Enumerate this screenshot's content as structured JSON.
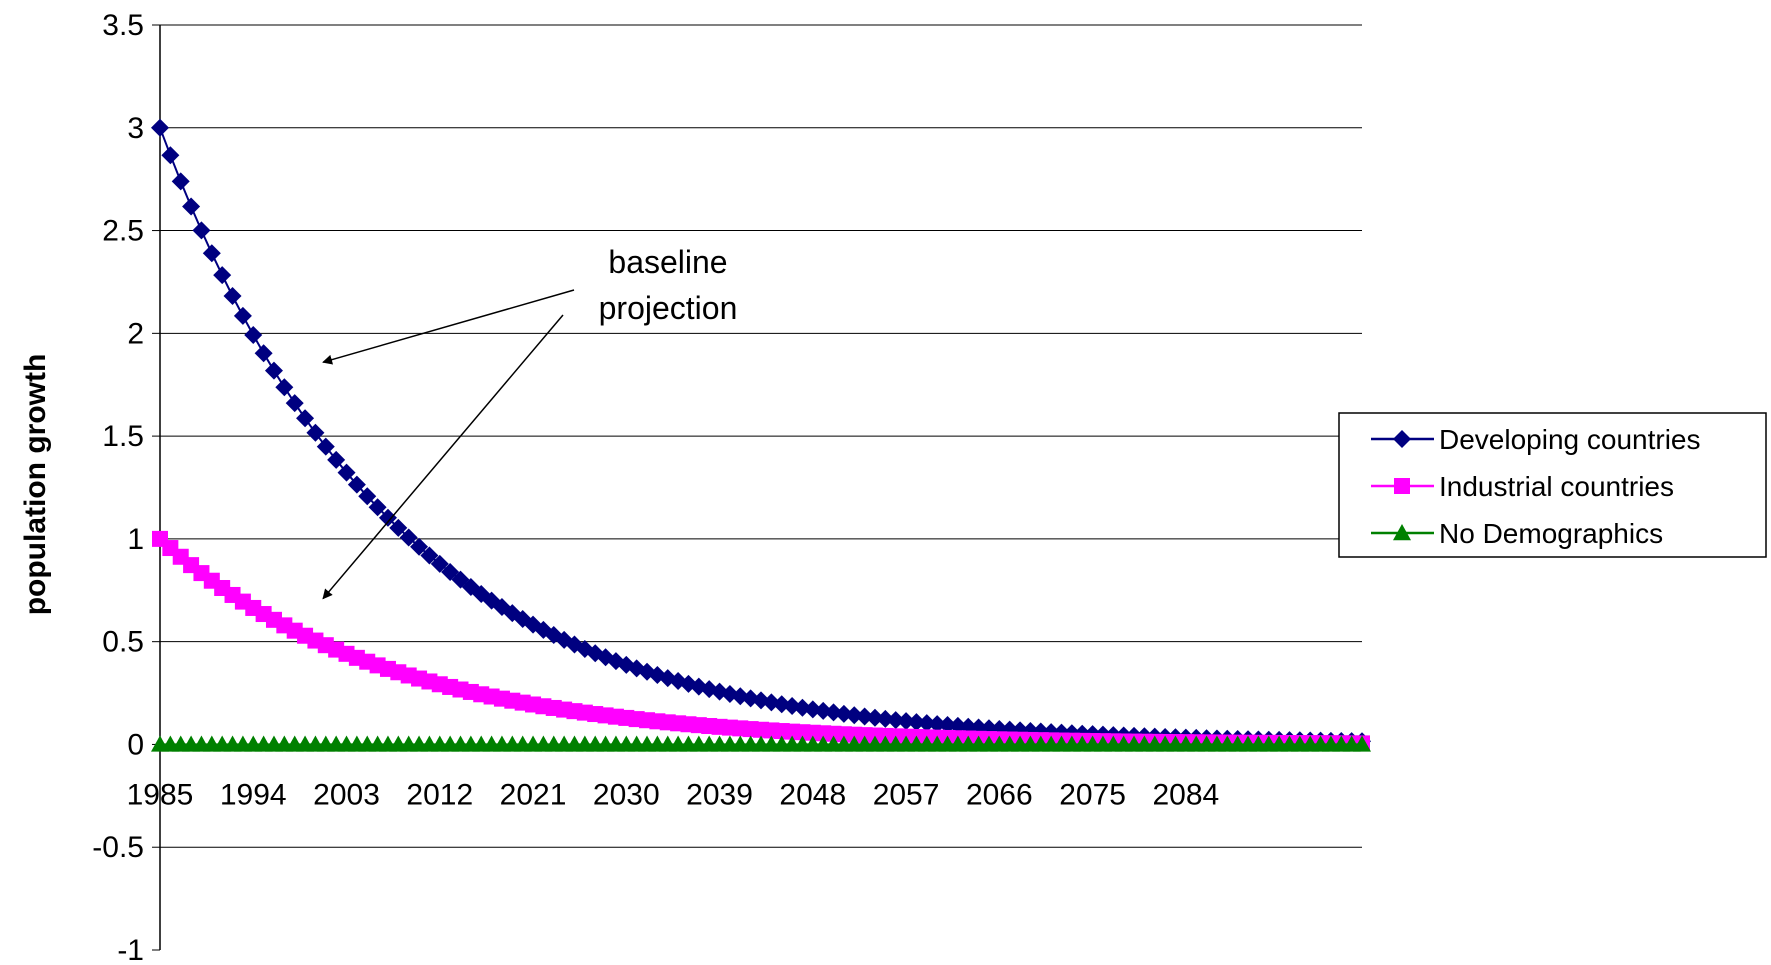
{
  "chart_data": {
    "type": "line",
    "xlabel": "",
    "ylabel": "population growth",
    "ylim": [
      -1,
      3.5
    ],
    "yticks": [
      -1,
      -0.5,
      0,
      0.5,
      1,
      1.5,
      2,
      2.5,
      3,
      3.5
    ],
    "ytick_labels": [
      "-1",
      "-0.5",
      "0",
      "0.5",
      "1",
      "1.5",
      "2",
      "2.5",
      "3",
      "3.5"
    ],
    "x_start": 1985,
    "x_end": 2101,
    "xticks": [
      "1985",
      "1994",
      "2003",
      "2012",
      "2021",
      "2030",
      "2039",
      "2048",
      "2057",
      "2066",
      "2075",
      "2084"
    ],
    "grid": "horizontal",
    "legend_position": "right",
    "series": [
      {
        "name": "Developing countries",
        "color": "#000080",
        "marker": "diamond",
        "decay_rate": 0.0455,
        "points": [
          [
            1985,
            3.0
          ],
          [
            1990,
            2.4
          ],
          [
            1995,
            1.9
          ],
          [
            2000,
            1.51
          ],
          [
            2005,
            1.2
          ],
          [
            2010,
            0.96
          ],
          [
            2015,
            0.77
          ],
          [
            2020,
            0.61
          ],
          [
            2025,
            0.49
          ],
          [
            2030,
            0.39
          ],
          [
            2035,
            0.31
          ],
          [
            2040,
            0.25
          ],
          [
            2045,
            0.2
          ],
          [
            2050,
            0.16
          ],
          [
            2055,
            0.12
          ],
          [
            2060,
            0.1
          ],
          [
            2065,
            0.08
          ],
          [
            2070,
            0.06
          ],
          [
            2075,
            0.05
          ],
          [
            2080,
            0.04
          ],
          [
            2085,
            0.03
          ],
          [
            2090,
            0.03
          ],
          [
            2095,
            0.02
          ],
          [
            2101,
            0.02
          ]
        ]
      },
      {
        "name": "Industrial countries",
        "color": "#ff00ff",
        "marker": "square",
        "decay_rate": 0.0455,
        "points": [
          [
            1985,
            1.0
          ],
          [
            1990,
            0.8
          ],
          [
            1995,
            0.63
          ],
          [
            2000,
            0.5
          ],
          [
            2005,
            0.4
          ],
          [
            2010,
            0.32
          ],
          [
            2015,
            0.26
          ],
          [
            2020,
            0.2
          ],
          [
            2025,
            0.16
          ],
          [
            2030,
            0.13
          ],
          [
            2035,
            0.1
          ],
          [
            2040,
            0.08
          ],
          [
            2045,
            0.07
          ],
          [
            2050,
            0.05
          ],
          [
            2055,
            0.04
          ],
          [
            2060,
            0.03
          ],
          [
            2065,
            0.03
          ],
          [
            2070,
            0.02
          ],
          [
            2075,
            0.02
          ],
          [
            2080,
            0.01
          ],
          [
            2085,
            0.01
          ],
          [
            2090,
            0.01
          ],
          [
            2095,
            0.01
          ],
          [
            2101,
            0.01
          ]
        ]
      },
      {
        "name": "No Demographics",
        "color": "#008000",
        "marker": "triangle",
        "decay_rate": 0,
        "points": [
          [
            1985,
            0
          ],
          [
            2101,
            0
          ]
        ]
      }
    ],
    "annotations": [
      {
        "text_lines": [
          "baseline",
          "projection"
        ],
        "arrows_to": [
          {
            "series": "Developing countries",
            "x": 1999,
            "y": 1.85
          },
          {
            "series": "Industrial countries",
            "x": 1999,
            "y": 0.7
          }
        ]
      }
    ]
  }
}
